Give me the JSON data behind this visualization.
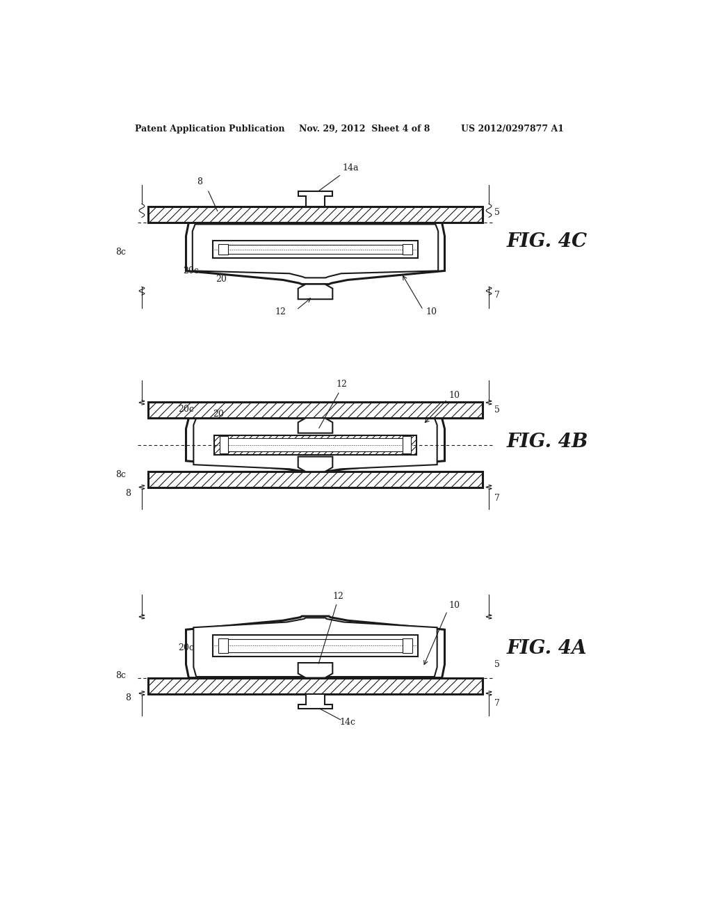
{
  "bg_color": "#ffffff",
  "line_color": "#1a1a1a",
  "header_left": "Patent Application Publication",
  "header_mid": "Nov. 29, 2012  Sheet 4 of 8",
  "header_right": "US 2012/0297877 A1"
}
